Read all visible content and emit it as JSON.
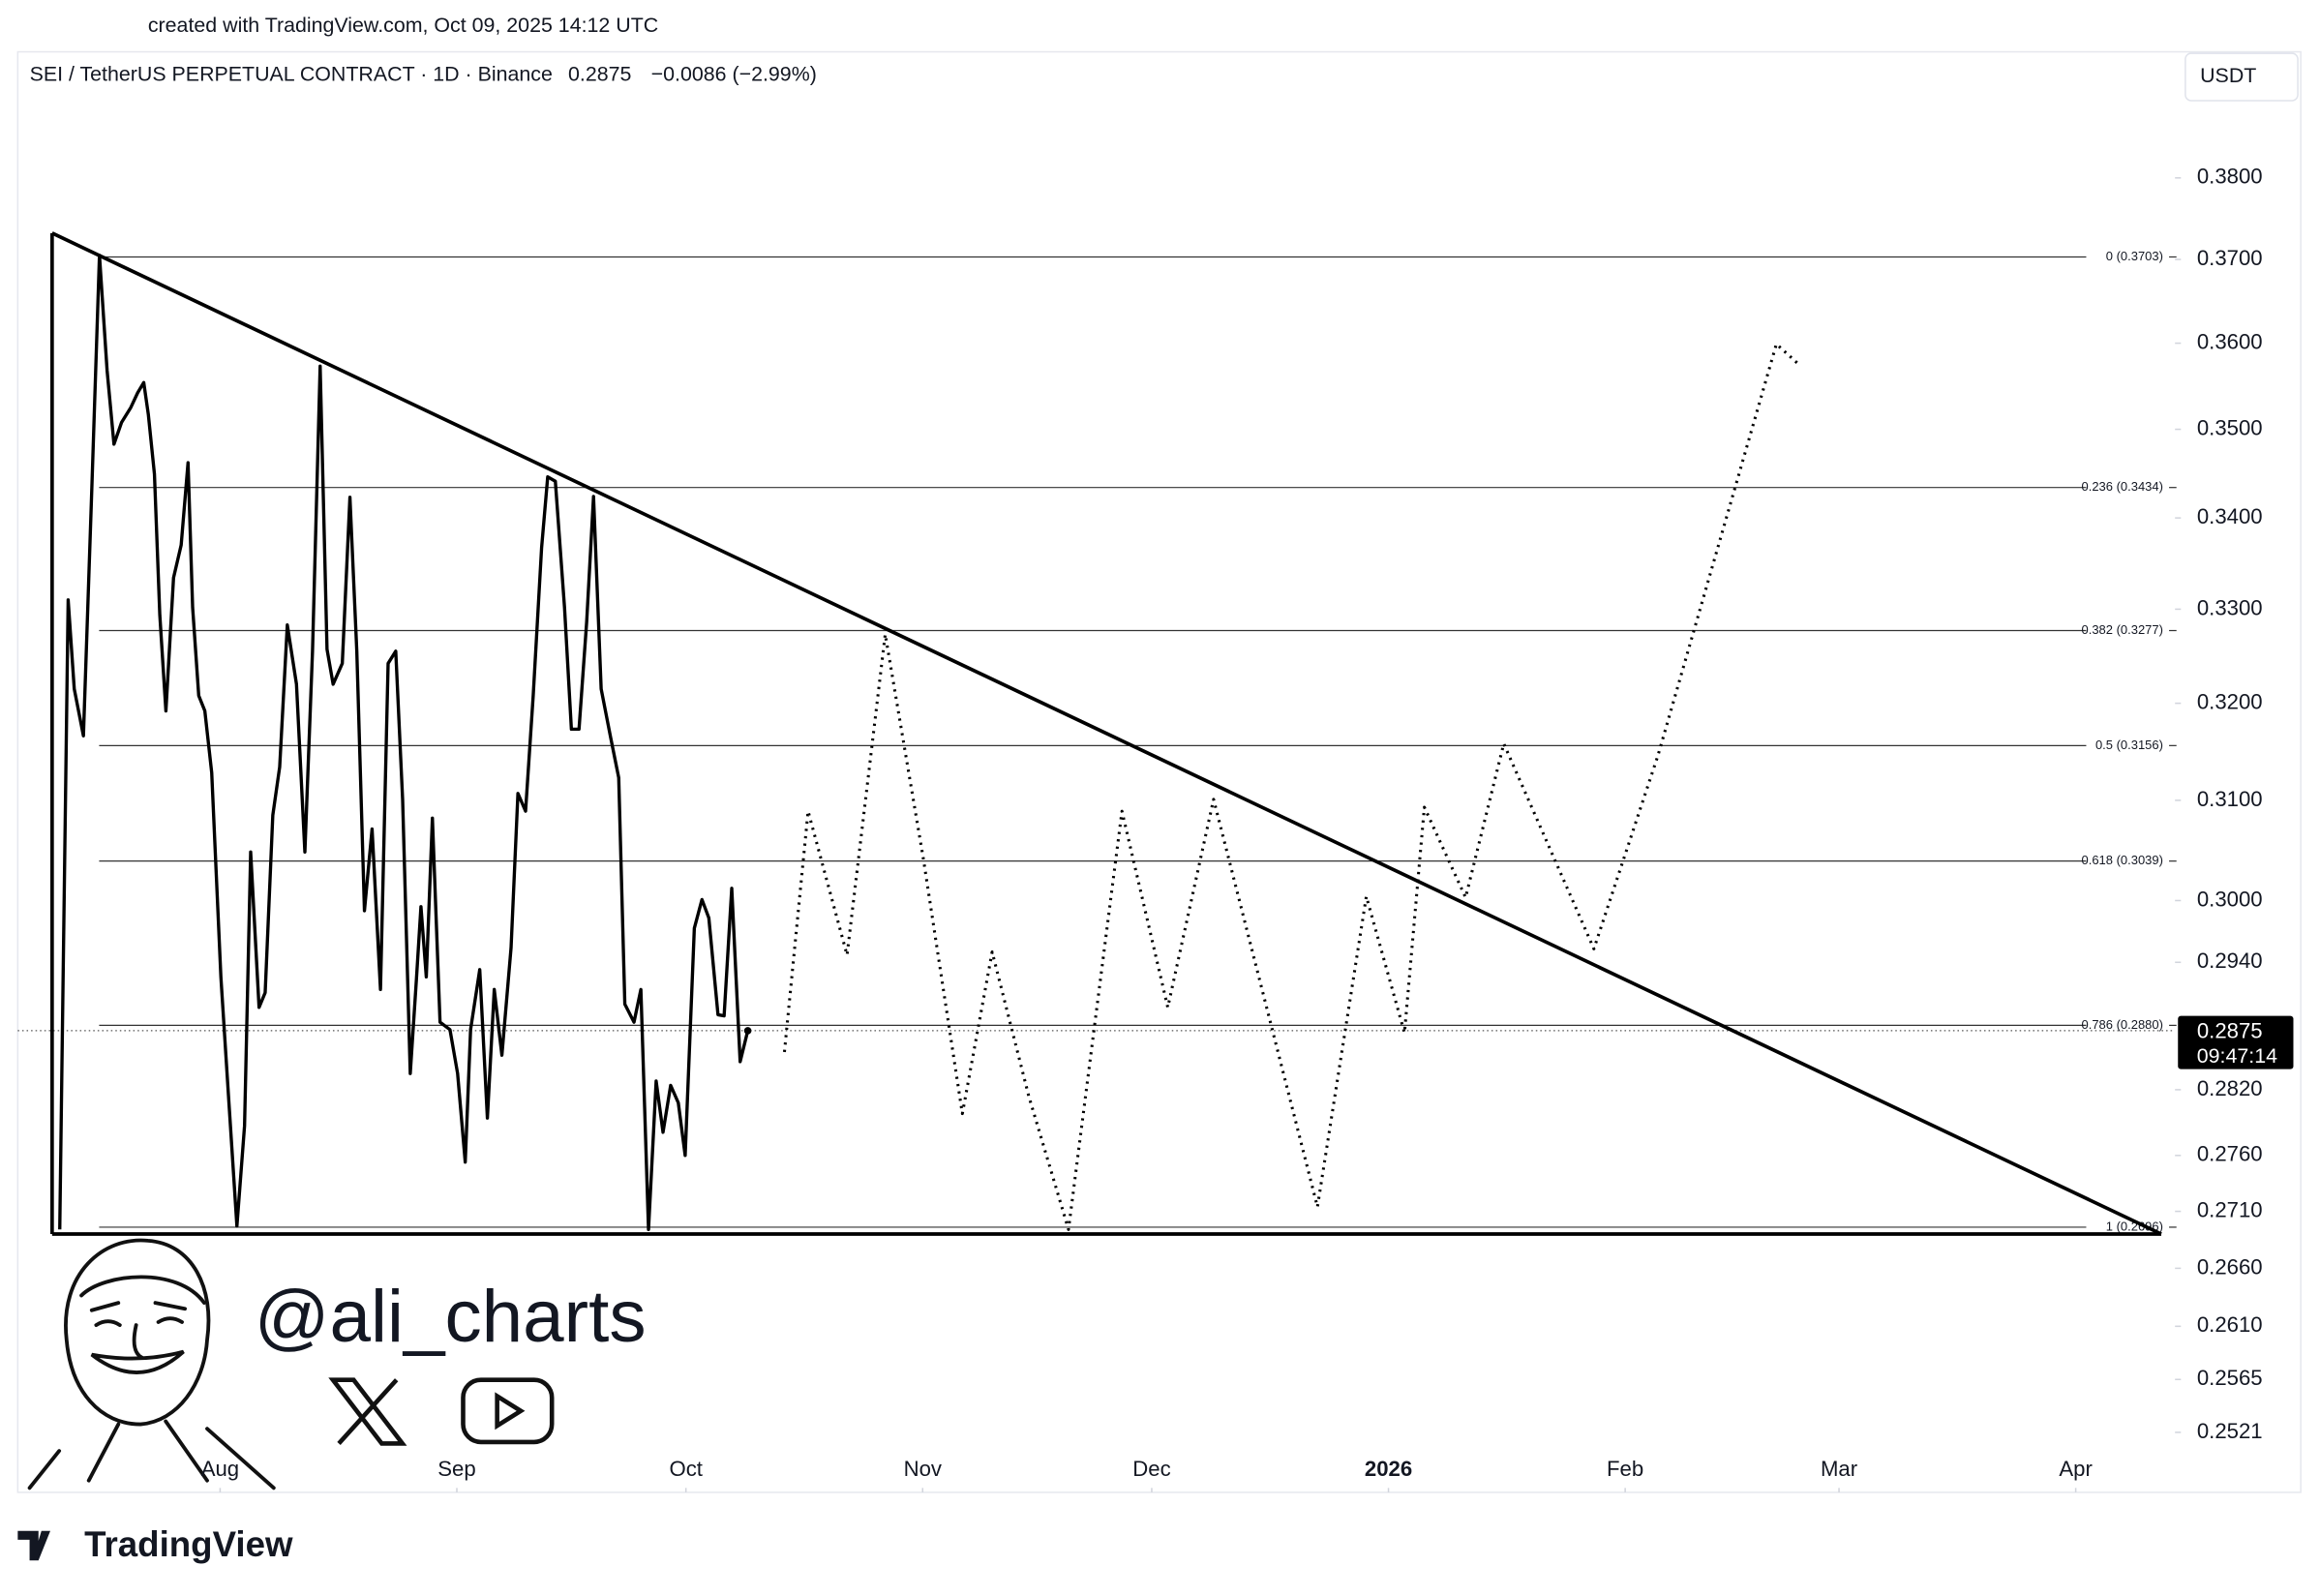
{
  "header": {
    "created": "created with TradingView.com, Oct 09, 2025 14:12 UTC",
    "brand": "TradingView",
    "handle": "@ali_charts"
  },
  "chart_data": {
    "type": "line",
    "title": "SEI / TetherUS PERPETUAL CONTRACT · 1D · Binance",
    "last_price": 0.2875,
    "change_label": "−0.0086 (−2.99%)",
    "currency": "USDT",
    "price_tag": {
      "value": 0.2875,
      "label": "0.2875",
      "countdown": "09:47:14"
    },
    "log_scale": true,
    "grid": false,
    "xlim": [
      -4.5,
      278
    ],
    "ylim": [
      0.2472,
      0.396
    ],
    "xticks": [
      {
        "value": 22,
        "label": "Aug"
      },
      {
        "value": 53,
        "label": "Sep"
      },
      {
        "value": 83,
        "label": "Oct"
      },
      {
        "value": 114,
        "label": "Nov"
      },
      {
        "value": 144,
        "label": "Dec"
      },
      {
        "value": 175,
        "label": "2026"
      },
      {
        "value": 206,
        "label": "Feb"
      },
      {
        "value": 234,
        "label": "Mar"
      },
      {
        "value": 265,
        "label": "Apr"
      }
    ],
    "yticks": [
      {
        "value": 0.38,
        "label": "0.3800"
      },
      {
        "value": 0.37,
        "label": "0.3700"
      },
      {
        "value": 0.36,
        "label": "0.3600"
      },
      {
        "value": 0.35,
        "label": "0.3500"
      },
      {
        "value": 0.34,
        "label": "0.3400"
      },
      {
        "value": 0.33,
        "label": "0.3300"
      },
      {
        "value": 0.32,
        "label": "0.3200"
      },
      {
        "value": 0.31,
        "label": "0.3100"
      },
      {
        "value": 0.3,
        "label": "0.3000"
      },
      {
        "value": 0.294,
        "label": "0.2940"
      },
      {
        "value": 0.282,
        "label": "0.2820"
      },
      {
        "value": 0.276,
        "label": "0.2760"
      },
      {
        "value": 0.271,
        "label": "0.2710"
      },
      {
        "value": 0.266,
        "label": "0.2660"
      },
      {
        "value": 0.261,
        "label": "0.2610"
      },
      0.2565,
      0.2521
    ],
    "fib_levels": [
      {
        "value": 0.3703,
        "label": "0 (0.3703)"
      },
      {
        "value": 0.3434,
        "label": "0.236 (0.3434)"
      },
      {
        "value": 0.3277,
        "label": "0.382 (0.3277)"
      },
      {
        "value": 0.3156,
        "label": "0.5 (0.3156)"
      },
      {
        "value": 0.3039,
        "label": "0.618 (0.3039)"
      },
      {
        "value": 0.288,
        "label": "0.786 (0.2880)"
      },
      {
        "value": 0.2696,
        "label": "1 (0.2696)"
      }
    ],
    "trendlines": [
      {
        "x": [
          0,
          276.2
        ],
        "values": [
          0.3732,
          0.269
        ]
      },
      {
        "x": [
          0,
          276.2
        ],
        "values": [
          0.269,
          0.269
        ]
      },
      {
        "x": [
          0,
          0
        ],
        "values": [
          0.269,
          0.3732
        ]
      }
    ],
    "series": [
      {
        "color": "#000000",
        "style": "solid",
        "x": [
          1.0,
          2.1,
          2.9,
          4.1,
          5.2,
          6.2,
          7.2,
          8.1,
          9.1,
          10.3,
          11.2,
          12.0,
          12.6,
          13.4,
          14.1,
          14.9,
          15.9,
          16.9,
          17.8,
          18.4,
          19.2,
          20.0,
          20.9,
          22.1,
          23.1,
          24.2,
          25.2,
          26.0,
          27.1,
          27.9,
          28.9,
          29.8,
          30.8,
          32.0,
          33.1,
          34.1,
          35.1,
          36.0,
          36.8,
          38.0,
          39.0,
          39.9,
          40.9,
          41.9,
          43.0,
          44.0,
          45.0,
          45.9,
          46.9,
          47.7,
          48.3,
          49.0,
          49.8,
          50.8,
          52.1,
          53.1,
          54.1,
          54.8,
          56.0,
          57.0,
          57.9,
          58.9,
          60.1,
          61.0,
          62.0,
          63.0,
          64.1,
          64.9,
          65.9,
          67.1,
          68.0,
          69.0,
          70.0,
          70.9,
          71.9,
          73.1,
          74.2,
          75.0,
          76.2,
          77.1,
          78.1,
          79.1,
          80.0,
          81.0,
          82.0,
          82.9,
          84.1,
          85.1,
          86.0,
          87.2,
          88.0,
          89.0,
          90.1,
          91.1
        ],
        "values": [
          0.2694,
          0.331,
          0.3215,
          0.3166,
          0.3433,
          0.3705,
          0.3568,
          0.3483,
          0.3508,
          0.3525,
          0.3542,
          0.3554,
          0.3517,
          0.3449,
          0.3294,
          0.3192,
          0.3334,
          0.337,
          0.3462,
          0.3302,
          0.3208,
          0.3192,
          0.3128,
          0.2926,
          0.2814,
          0.2697,
          0.2787,
          0.3048,
          0.2897,
          0.2911,
          0.3085,
          0.3134,
          0.3283,
          0.322,
          0.3048,
          0.3255,
          0.3573,
          0.3257,
          0.322,
          0.3242,
          0.3423,
          0.3255,
          0.299,
          0.3071,
          0.2914,
          0.3242,
          0.3255,
          0.3101,
          0.2835,
          0.2923,
          0.2994,
          0.2926,
          0.3082,
          0.2883,
          0.2876,
          0.2835,
          0.2754,
          0.2876,
          0.2933,
          0.2794,
          0.2914,
          0.2852,
          0.2954,
          0.3107,
          0.3089,
          0.3208,
          0.3367,
          0.3446,
          0.3441,
          0.3302,
          0.3173,
          0.3173,
          0.3286,
          0.3424,
          0.3215,
          0.3166,
          0.3123,
          0.29,
          0.2883,
          0.2914,
          0.2694,
          0.2828,
          0.2781,
          0.2824,
          0.2808,
          0.276,
          0.2973,
          0.3001,
          0.2983,
          0.289,
          0.2889,
          0.3012,
          0.2846,
          0.2875
        ]
      },
      {
        "color": "#000000",
        "style": "dotted",
        "x": [
          95.9,
          99.0,
          104.1,
          109.1,
          114.1,
          119.2,
          123.1,
          127.9,
          133.1,
          140.1,
          146.1,
          152.1,
          165.7,
          172.1,
          177.1,
          179.7,
          185.1,
          190.1,
          201.9,
          210.3,
          225.8,
          228.5
        ],
        "values": [
          0.2855,
          0.3089,
          0.2947,
          0.3273,
          0.3041,
          0.2798,
          0.295,
          0.2814,
          0.2694,
          0.3089,
          0.2897,
          0.3101,
          0.2714,
          0.3004,
          0.2873,
          0.3093,
          0.3003,
          0.3158,
          0.2953,
          0.3146,
          0.3599,
          0.3577
        ]
      }
    ]
  }
}
